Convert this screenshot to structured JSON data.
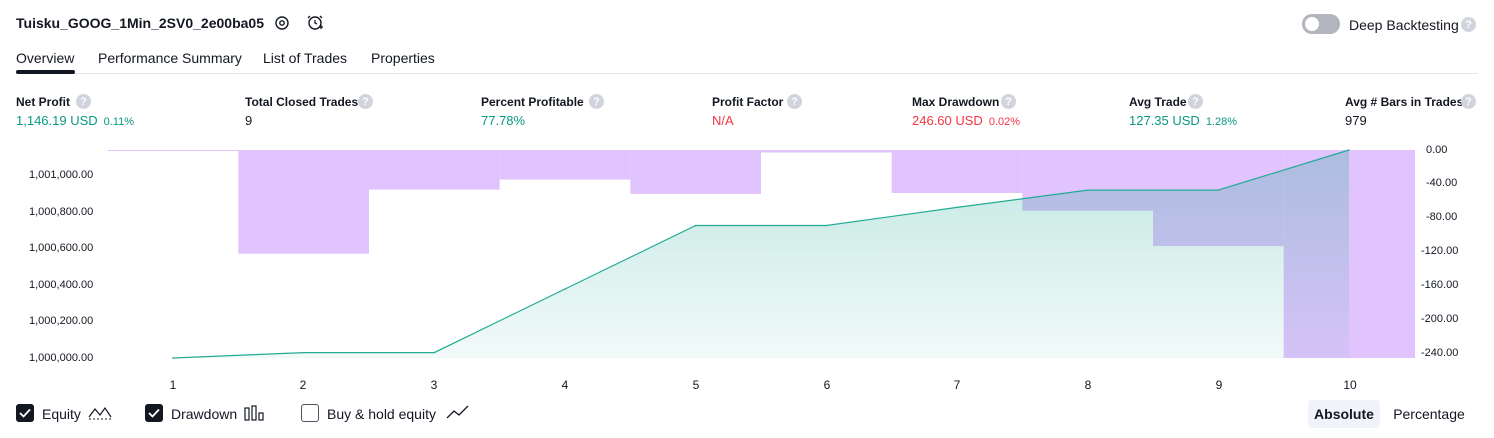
{
  "header": {
    "title": "Tuisku_GOOG_1Min_2SV0_2e00ba05",
    "deep_backtesting_label": "Deep Backtesting",
    "help_glyph": "?"
  },
  "tabs": [
    {
      "label": "Overview",
      "active": true
    },
    {
      "label": "Performance Summary",
      "active": false
    },
    {
      "label": "List of Trades",
      "active": false
    },
    {
      "label": "Properties",
      "active": false
    }
  ],
  "stats": [
    {
      "label": "Net Profit",
      "value": "1,146.19 USD",
      "pct": "0.11%",
      "color": "#089981"
    },
    {
      "label": "Total Closed Trades",
      "value": "9",
      "pct": "",
      "color": "#131722"
    },
    {
      "label": "Percent Profitable",
      "value": "77.78%",
      "pct": "",
      "color": "#089981"
    },
    {
      "label": "Profit Factor",
      "value": "N/A",
      "pct": "",
      "color": "#f23645"
    },
    {
      "label": "Max Drawdown",
      "value": "246.60 USD",
      "pct": "0.02%",
      "color": "#f23645"
    },
    {
      "label": "Avg Trade",
      "value": "127.35 USD",
      "pct": "1.28%",
      "color": "#089981"
    },
    {
      "label": "Avg # Bars in Trades",
      "value": "979",
      "pct": "",
      "color": "#131722"
    }
  ],
  "chart_data": {
    "type": "line",
    "x": [
      1,
      2,
      3,
      4,
      5,
      6,
      7,
      8,
      9,
      10
    ],
    "series": [
      {
        "values": [
          1000000,
          1000030,
          1000030,
          1000380,
          1000730,
          1000730,
          1000830,
          1000925,
          1000925,
          1001146.19
        ],
        "color": "#22ab94"
      },
      {
        "values": [
          0,
          -123,
          -47,
          -35,
          -52,
          -3,
          -51,
          -72,
          -114,
          -246.6
        ],
        "color": "#e1c4fd"
      }
    ],
    "left_ticks": [
      "1,001,000.00",
      "1,000,800.00",
      "1,000,600.00",
      "1,000,400.00",
      "1,000,200.00",
      "1,000,000.00"
    ],
    "right_ticks": [
      "0.00",
      "-40.00",
      "-80.00",
      "-120.00",
      "-160.00",
      "-200.00",
      "-240.00"
    ],
    "x_ticks": [
      "1",
      "2",
      "3",
      "4",
      "5",
      "6",
      "7",
      "8",
      "9",
      "10"
    ],
    "left_range": [
      1000000,
      1001146.19
    ],
    "right_range": [
      -246.6,
      0
    ]
  },
  "legend": {
    "equity_label": "Equity",
    "drawdown_label": "Drawdown",
    "buyhold_label": "Buy & hold equity",
    "equity_checked": true,
    "drawdown_checked": true,
    "buyhold_checked": false
  },
  "view_mode": {
    "absolute_label": "Absolute",
    "percentage_label": "Percentage",
    "selected": "Absolute"
  }
}
